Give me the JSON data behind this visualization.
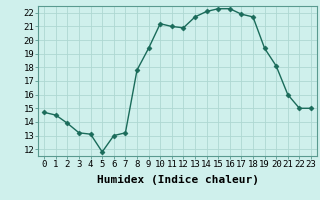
{
  "x": [
    0,
    1,
    2,
    3,
    4,
    5,
    6,
    7,
    8,
    9,
    10,
    11,
    12,
    13,
    14,
    15,
    16,
    17,
    18,
    19,
    20,
    21,
    22,
    23
  ],
  "y": [
    14.7,
    14.5,
    13.9,
    13.2,
    13.1,
    11.8,
    13.0,
    13.2,
    17.8,
    19.4,
    21.2,
    21.0,
    20.9,
    21.7,
    22.1,
    22.3,
    22.3,
    21.9,
    21.7,
    19.4,
    18.1,
    16.0,
    15.0,
    15.0
  ],
  "line_color": "#1a6b5a",
  "marker": "D",
  "marker_size": 2.5,
  "bg_color": "#cff0ec",
  "grid_color": "#aed8d2",
  "xlabel": "Humidex (Indice chaleur)",
  "ylim": [
    11.5,
    22.5
  ],
  "xlim": [
    -0.5,
    23.5
  ],
  "yticks": [
    12,
    13,
    14,
    15,
    16,
    17,
    18,
    19,
    20,
    21,
    22
  ],
  "xticks": [
    0,
    1,
    2,
    3,
    4,
    5,
    6,
    7,
    8,
    9,
    10,
    11,
    12,
    13,
    14,
    15,
    16,
    17,
    18,
    19,
    20,
    21,
    22,
    23
  ],
  "xtick_labels": [
    "0",
    "1",
    "2",
    "3",
    "4",
    "5",
    "6",
    "7",
    "8",
    "9",
    "10",
    "11",
    "12",
    "13",
    "14",
    "15",
    "16",
    "17",
    "18",
    "19",
    "20",
    "21",
    "22",
    "23"
  ],
  "tick_fontsize": 6.5,
  "xlabel_fontsize": 8,
  "line_width": 1.0
}
